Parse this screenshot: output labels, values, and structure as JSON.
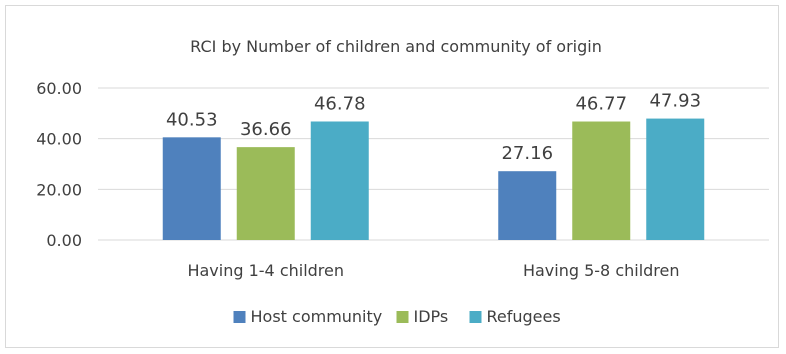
{
  "chart_data": {
    "type": "bar",
    "title": "RCI by Number of children and community of origin",
    "xlabel": "",
    "ylabel": "",
    "categories": [
      "Having 1-4 children",
      "Having 5-8 children"
    ],
    "series": [
      {
        "name": "Host community",
        "color": "#4f81bd",
        "values": [
          40.53,
          27.16
        ],
        "labels": [
          "40.53",
          "27.16"
        ]
      },
      {
        "name": "IDPs",
        "color": "#9bbb59",
        "values": [
          36.66,
          46.77
        ],
        "labels": [
          "36.66",
          "46.77"
        ]
      },
      {
        "name": "Refugees",
        "color": "#4bacc6",
        "values": [
          46.78,
          47.93
        ],
        "labels": [
          "46.78",
          "47.93"
        ]
      }
    ],
    "ylim": [
      0,
      60
    ],
    "yticks": [
      0,
      20,
      40,
      60
    ],
    "ytick_labels": [
      "0.00",
      "20.00",
      "40.00",
      "60.00"
    ],
    "grid": true,
    "gridline_color": "#d9d9d9",
    "legend_position": "bottom"
  }
}
